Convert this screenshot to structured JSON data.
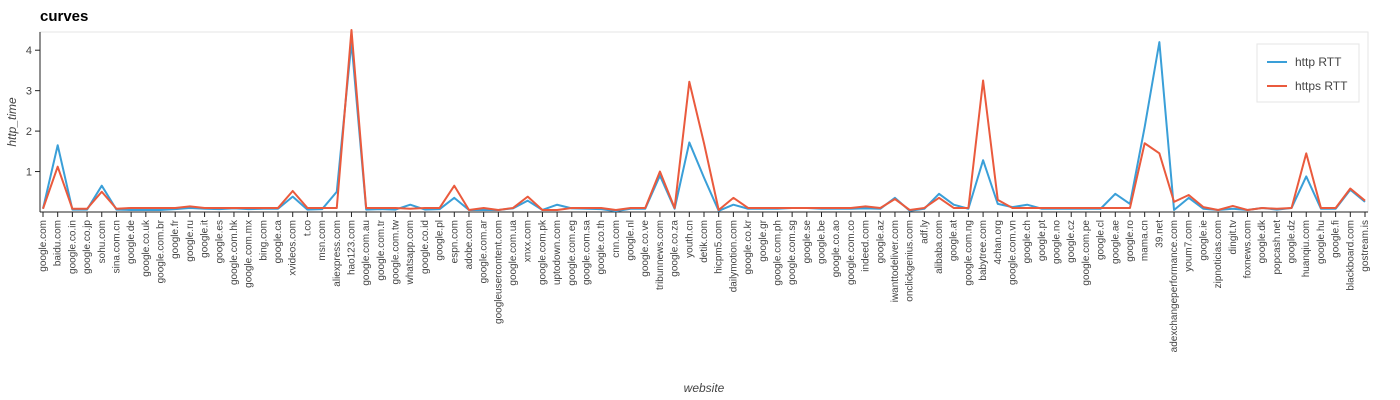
{
  "chart_data": {
    "type": "line",
    "title": "curves",
    "xlabel": "website",
    "ylabel": "http_time",
    "ylim": [
      0,
      4.45
    ],
    "yticks": [
      1,
      2,
      3,
      4
    ],
    "grid": false,
    "legend_position": "top-right",
    "categories": [
      "google.com",
      "baidu.com",
      "google.co.in",
      "google.co.jp",
      "sohu.com",
      "sina.com.cn",
      "google.de",
      "google.co.uk",
      "google.com.br",
      "google.fr",
      "google.ru",
      "google.it",
      "google.es",
      "google.com.hk",
      "google.com.mx",
      "bing.com",
      "google.ca",
      "xvideos.com",
      "t.co",
      "msn.com",
      "aliexpress.com",
      "hao123.com",
      "google.com.au",
      "google.com.tr",
      "google.com.tw",
      "whatsapp.com",
      "google.co.id",
      "google.pl",
      "espn.com",
      "adobe.com",
      "google.com.ar",
      "googleusercontent.com",
      "google.com.ua",
      "xnxx.com",
      "google.com.pk",
      "uptodown.com",
      "google.com.eg",
      "google.com.sa",
      "google.co.th",
      "cnn.com",
      "google.nl",
      "google.co.ve",
      "tribunnews.com",
      "google.co.za",
      "youth.cn",
      "detik.com",
      "hicpm5.com",
      "dailymotion.com",
      "google.co.kr",
      "google.gr",
      "google.com.ph",
      "google.com.sg",
      "google.se",
      "google.be",
      "google.co.ao",
      "google.com.co",
      "indeed.com",
      "google.az",
      "iwanttodeliver.com",
      "onclickgenius.com",
      "adf.ly",
      "alibaba.com",
      "google.at",
      "google.com.ng",
      "babytree.com",
      "4chan.org",
      "google.com.vn",
      "google.ch",
      "google.pt",
      "google.no",
      "google.cz",
      "google.com.pe",
      "google.cl",
      "google.ae",
      "google.ro",
      "mama.cn",
      "39.net",
      "adexchangeperformance.com",
      "youm7.com",
      "google.ie",
      "zipnoticias.com",
      "dingit.tv",
      "foxnews.com",
      "google.dk",
      "popcash.net",
      "google.dz",
      "huanqiu.com",
      "google.hu",
      "google.fi",
      "blackboard.com",
      "gostream.is"
    ],
    "series": [
      {
        "name": "http RTT",
        "color": "#3a9fd8",
        "values": [
          0.08,
          1.65,
          0.06,
          0.06,
          0.65,
          0.06,
          0.05,
          0.05,
          0.05,
          0.07,
          0.1,
          0.08,
          0.07,
          0.09,
          0.07,
          0.08,
          0.08,
          0.38,
          0.06,
          0.07,
          0.5,
          4.2,
          0.06,
          0.07,
          0.06,
          0.18,
          0.06,
          0.07,
          0.35,
          0.05,
          0.05,
          0.05,
          0.09,
          0.28,
          0.05,
          0.18,
          0.09,
          0.08,
          0.07,
          0.02,
          0.08,
          0.08,
          0.9,
          0.08,
          1.72,
          0.85,
          0.03,
          0.18,
          0.08,
          0.08,
          0.08,
          0.1,
          0.1,
          0.08,
          0.08,
          0.08,
          0.09,
          0.08,
          0.35,
          0.03,
          0.08,
          0.45,
          0.18,
          0.08,
          1.28,
          0.2,
          0.12,
          0.18,
          0.08,
          0.08,
          0.08,
          0.08,
          0.08,
          0.45,
          0.2,
          2.1,
          4.2,
          0.05,
          0.35,
          0.08,
          0.05,
          0.08,
          0.05,
          0.1,
          0.06,
          0.1,
          0.88,
          0.08,
          0.08,
          0.55,
          0.25
        ]
      },
      {
        "name": "https RTT",
        "color": "#ea5a3d",
        "values": [
          0.08,
          1.12,
          0.08,
          0.08,
          0.5,
          0.08,
          0.1,
          0.1,
          0.1,
          0.1,
          0.14,
          0.1,
          0.1,
          0.1,
          0.1,
          0.1,
          0.1,
          0.52,
          0.1,
          0.1,
          0.1,
          4.5,
          0.1,
          0.1,
          0.1,
          0.08,
          0.1,
          0.1,
          0.65,
          0.05,
          0.1,
          0.05,
          0.1,
          0.38,
          0.05,
          0.05,
          0.1,
          0.1,
          0.1,
          0.05,
          0.1,
          0.1,
          1.0,
          0.1,
          3.22,
          1.7,
          0.05,
          0.35,
          0.1,
          0.1,
          0.1,
          0.1,
          0.1,
          0.1,
          0.1,
          0.1,
          0.14,
          0.1,
          0.32,
          0.05,
          0.1,
          0.35,
          0.1,
          0.1,
          3.25,
          0.3,
          0.1,
          0.1,
          0.1,
          0.1,
          0.1,
          0.1,
          0.1,
          0.1,
          0.1,
          1.7,
          1.45,
          0.25,
          0.42,
          0.12,
          0.05,
          0.15,
          0.05,
          0.1,
          0.08,
          0.1,
          1.45,
          0.1,
          0.1,
          0.58,
          0.28
        ]
      }
    ]
  }
}
